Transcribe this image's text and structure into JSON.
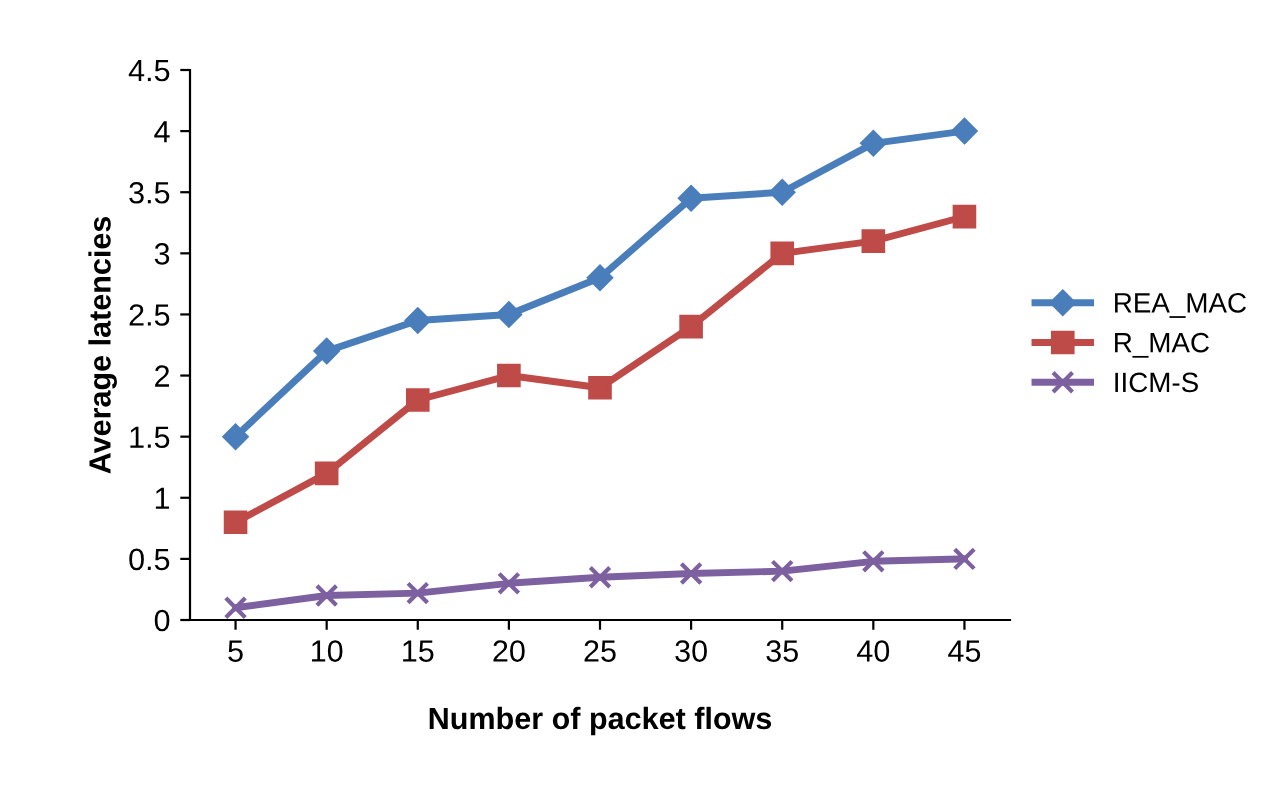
{
  "chart_data": {
    "type": "line",
    "xlabel": "Number of packet flows",
    "ylabel": "Average latencies",
    "categories": [
      "5",
      "10",
      "15",
      "20",
      "25",
      "30",
      "35",
      "40",
      "45"
    ],
    "series": [
      {
        "name": "REA_MAC",
        "color": "#4a7ebb",
        "marker": "diamond",
        "values": [
          1.5,
          2.2,
          2.45,
          2.5,
          2.8,
          3.45,
          3.5,
          3.9,
          4.0
        ]
      },
      {
        "name": "R_MAC",
        "color": "#be4b48",
        "marker": "square",
        "values": [
          0.8,
          1.2,
          1.8,
          2.0,
          1.9,
          2.4,
          3.0,
          3.1,
          3.3
        ]
      },
      {
        "name": "IICM-S",
        "color": "#7d60a0",
        "marker": "cross",
        "values": [
          0.1,
          0.2,
          0.22,
          0.3,
          0.35,
          0.38,
          0.4,
          0.48,
          0.5
        ]
      }
    ],
    "ylim": [
      0,
      4.5
    ],
    "yticks": [
      0,
      0.5,
      1,
      1.5,
      2,
      2.5,
      3,
      3.5,
      4,
      4.5
    ],
    "grid": false,
    "legend": "right",
    "line_style": "solid"
  }
}
